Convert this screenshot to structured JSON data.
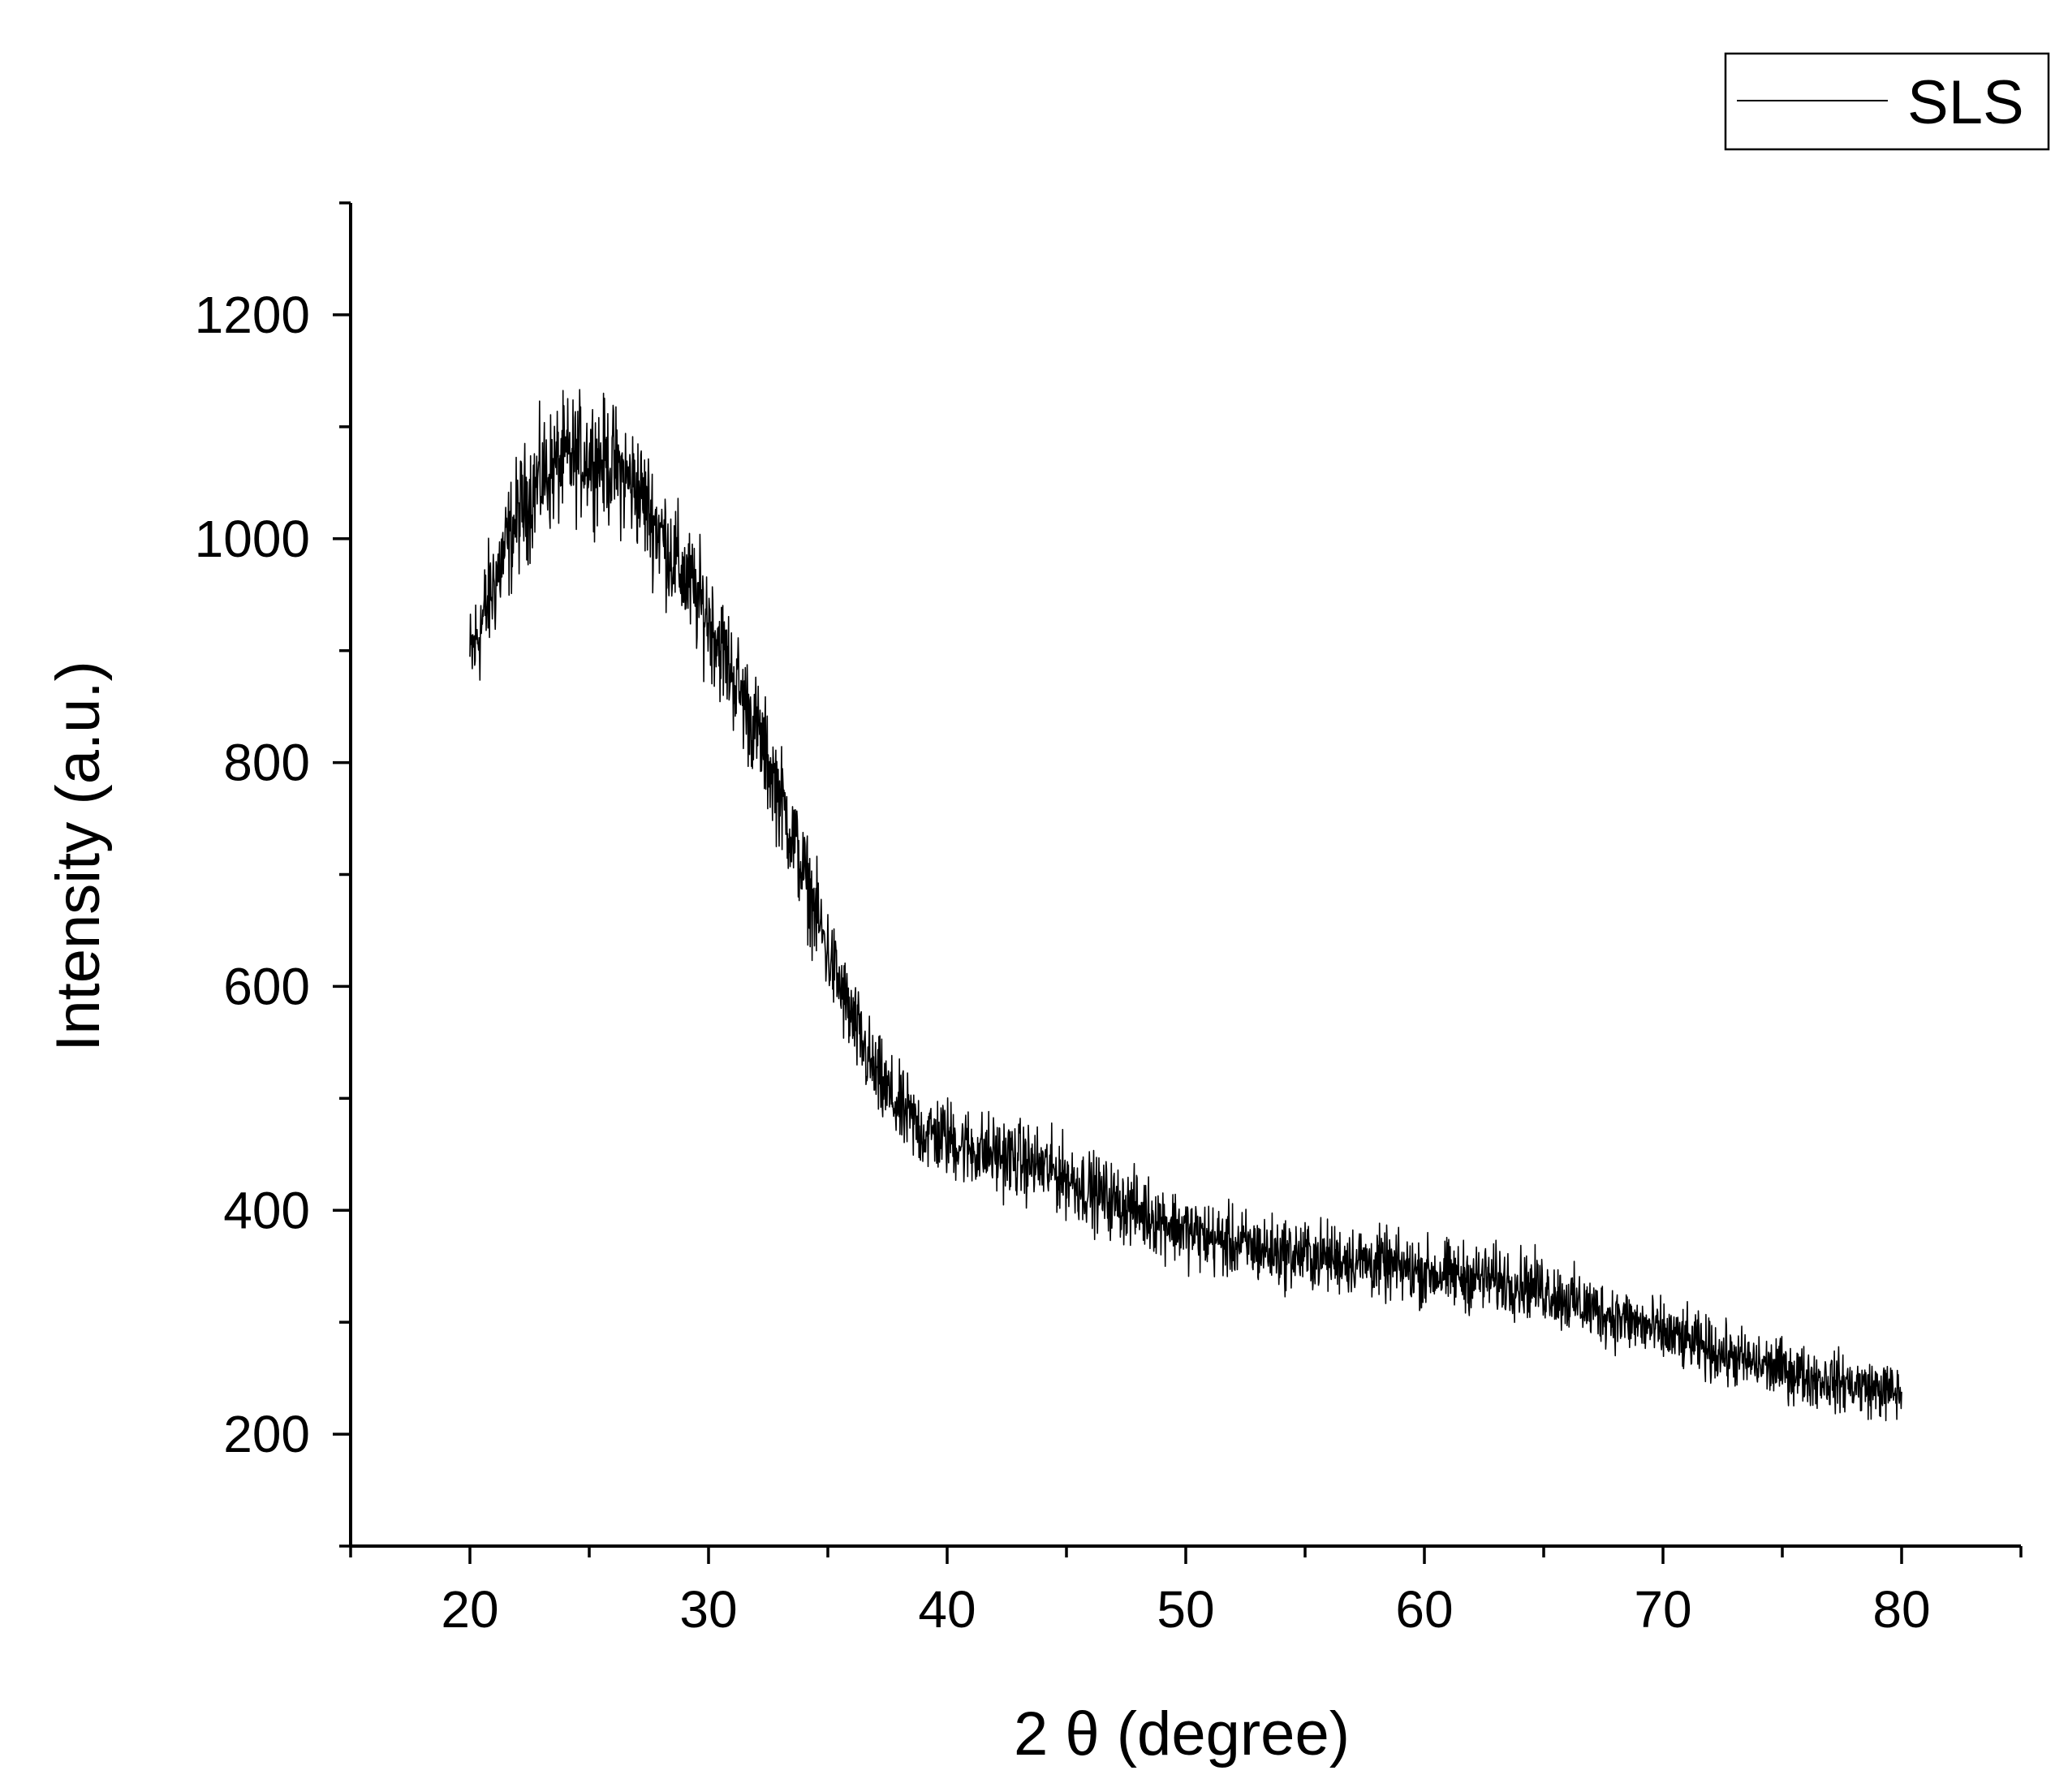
{
  "chart_data": {
    "type": "line",
    "xlabel": "2 θ (degree)",
    "ylabel": "Intensity (a.u.)",
    "xlim": [
      15,
      85
    ],
    "ylim": [
      100,
      1300
    ],
    "x_ticks": [
      20,
      30,
      40,
      50,
      60,
      70,
      80
    ],
    "y_ticks": [
      200,
      400,
      600,
      800,
      1000,
      1200
    ],
    "x_minor_step": 5,
    "y_minor_step": 100,
    "grid": false,
    "legend": {
      "position": "top-right",
      "entries": [
        "SLS"
      ]
    },
    "line_color": "#000000",
    "series": [
      {
        "name": "SLS",
        "x": [
          20,
          21,
          22,
          23,
          24,
          25,
          26,
          27,
          28,
          29,
          30,
          31,
          32,
          33,
          34,
          35,
          36,
          37,
          38,
          39,
          40,
          41,
          42,
          43,
          44,
          45,
          46,
          47,
          48,
          49,
          50,
          51,
          52,
          53,
          54,
          55,
          56,
          57,
          58,
          59,
          60,
          61,
          62,
          63,
          64,
          65,
          66,
          67,
          68,
          69,
          70,
          71,
          72,
          73,
          74,
          75,
          76,
          77,
          78,
          79,
          80
        ],
        "values": [
          890,
          960,
          1020,
          1055,
          1070,
          1075,
          1065,
          1045,
          1005,
          965,
          930,
          880,
          830,
          770,
          700,
          630,
          570,
          520,
          490,
          470,
          465,
          455,
          450,
          445,
          438,
          430,
          418,
          408,
          400,
          392,
          382,
          375,
          370,
          366,
          362,
          360,
          358,
          356,
          352,
          348,
          345,
          342,
          340,
          338,
          335,
          330,
          320,
          312,
          305,
          298,
          290,
          283,
          275,
          268,
          262,
          258,
          252,
          248,
          244,
          240,
          236
        ]
      }
    ]
  }
}
